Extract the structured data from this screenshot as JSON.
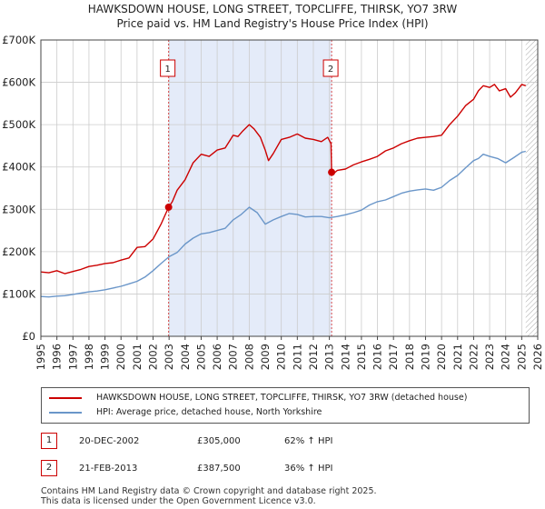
{
  "title_line1": "HAWKSDOWN HOUSE, LONG STREET, TOPCLIFFE, THIRSK, YO7 3RW",
  "title_line2": "Price paid vs. HM Land Registry's House Price Index (HPI)",
  "chart_data": {
    "type": "line",
    "title": "HAWKSDOWN HOUSE, LONG STREET, TOPCLIFFE, THIRSK, YO7 3RW",
    "subtitle": "Price paid vs. HM Land Registry's House Price Index (HPI)",
    "xlabel": "",
    "ylabel": "",
    "xlim": [
      1995,
      2026
    ],
    "ylim": [
      0,
      700000
    ],
    "grid": true,
    "x_ticks": [
      "1995",
      "1996",
      "1997",
      "1998",
      "1999",
      "2000",
      "2001",
      "2002",
      "2003",
      "2004",
      "2005",
      "2006",
      "2007",
      "2008",
      "2009",
      "2010",
      "2011",
      "2012",
      "2013",
      "2014",
      "2015",
      "2016",
      "2017",
      "2018",
      "2019",
      "2020",
      "2021",
      "2022",
      "2023",
      "2024",
      "2025",
      "2026"
    ],
    "y_ticks": [
      {
        "value": 0,
        "label": "£0"
      },
      {
        "value": 100000,
        "label": "£100K"
      },
      {
        "value": 200000,
        "label": "£200K"
      },
      {
        "value": 300000,
        "label": "£300K"
      },
      {
        "value": 400000,
        "label": "£400K"
      },
      {
        "value": 500000,
        "label": "£500K"
      },
      {
        "value": 600000,
        "label": "£600K"
      },
      {
        "value": 700000,
        "label": "£700K"
      }
    ],
    "shaded_period": [
      2002.97,
      2013.14
    ],
    "future_hatch_from": 2025.25,
    "series": [
      {
        "name": "HAWKSDOWN HOUSE, LONG STREET, TOPCLIFFE, THIRSK, YO7 3RW (detached house)",
        "color": "#cc0000",
        "x": [
          1995,
          1995.5,
          1996,
          1996.5,
          1997,
          1997.5,
          1998,
          1998.5,
          1999,
          1999.5,
          2000,
          2000.5,
          2001,
          2001.5,
          2002,
          2002.5,
          2002.97,
          2003.2,
          2003.5,
          2004,
          2004.5,
          2005,
          2005.5,
          2006,
          2006.5,
          2007,
          2007.3,
          2007.6,
          2008,
          2008.3,
          2008.7,
          2009,
          2009.2,
          2009.5,
          2010,
          2010.5,
          2011,
          2011.5,
          2012,
          2012.5,
          2012.9,
          2013.1,
          2013.14,
          2013.2,
          2013.5,
          2014,
          2014.5,
          2015,
          2015.5,
          2016,
          2016.5,
          2017,
          2017.5,
          2018,
          2018.5,
          2019,
          2019.5,
          2020,
          2020.5,
          2021,
          2021.5,
          2022,
          2022.3,
          2022.6,
          2023,
          2023.3,
          2023.6,
          2024,
          2024.3,
          2024.6,
          2025,
          2025.25
        ],
        "values": [
          152000,
          150000,
          155000,
          148000,
          153000,
          158000,
          165000,
          168000,
          172000,
          174000,
          180000,
          185000,
          210000,
          212000,
          230000,
          265000,
          305000,
          318000,
          345000,
          370000,
          410000,
          430000,
          425000,
          440000,
          445000,
          475000,
          472000,
          485000,
          500000,
          490000,
          470000,
          440000,
          415000,
          432000,
          465000,
          470000,
          478000,
          468000,
          465000,
          460000,
          470000,
          455000,
          387500,
          382000,
          392000,
          395000,
          405000,
          412000,
          418000,
          425000,
          438000,
          445000,
          455000,
          462000,
          468000,
          470000,
          472000,
          475000,
          500000,
          520000,
          545000,
          560000,
          580000,
          592000,
          588000,
          595000,
          580000,
          585000,
          565000,
          575000,
          595000,
          592000
        ]
      },
      {
        "name": "HPI: Average price, detached house, North Yorkshire",
        "color": "#6a96c9",
        "x": [
          1995,
          1995.5,
          1996,
          1996.5,
          1997,
          1997.5,
          1998,
          1998.5,
          1999,
          1999.5,
          2000,
          2000.5,
          2001,
          2001.5,
          2002,
          2002.5,
          2003,
          2003.5,
          2004,
          2004.5,
          2005,
          2005.5,
          2006,
          2006.5,
          2007,
          2007.5,
          2008,
          2008.5,
          2009,
          2009.5,
          2010,
          2010.5,
          2011,
          2011.5,
          2012,
          2012.5,
          2013,
          2013.5,
          2014,
          2014.5,
          2015,
          2015.5,
          2016,
          2016.5,
          2017,
          2017.5,
          2018,
          2018.5,
          2019,
          2019.5,
          2020,
          2020.5,
          2021,
          2021.5,
          2022,
          2022.3,
          2022.6,
          2023,
          2023.5,
          2024,
          2024.5,
          2025,
          2025.25
        ],
        "values": [
          94000,
          93000,
          95000,
          96000,
          99000,
          102000,
          105000,
          107000,
          110000,
          114000,
          118000,
          124000,
          130000,
          140000,
          155000,
          172000,
          188000,
          198000,
          218000,
          232000,
          242000,
          245000,
          250000,
          255000,
          275000,
          288000,
          305000,
          292000,
          265000,
          275000,
          283000,
          290000,
          288000,
          282000,
          283000,
          283000,
          280000,
          283000,
          287000,
          292000,
          298000,
          310000,
          318000,
          322000,
          330000,
          338000,
          343000,
          346000,
          348000,
          345000,
          352000,
          368000,
          380000,
          398000,
          415000,
          420000,
          430000,
          425000,
          420000,
          410000,
          422000,
          435000,
          437000
        ]
      }
    ],
    "sales": [
      {
        "marker": "1",
        "x": 2002.97,
        "price": 305000
      },
      {
        "marker": "2",
        "x": 2013.14,
        "price": 387500
      }
    ]
  },
  "legend": {
    "property_label": "HAWKSDOWN HOUSE, LONG STREET, TOPCLIFFE, THIRSK, YO7 3RW (detached house)",
    "hpi_label": "HPI: Average price, detached house, North Yorkshire"
  },
  "sales_table": [
    {
      "marker": "1",
      "date": "20-DEC-2002",
      "price": "£305,000",
      "hpi": "62% ↑ HPI"
    },
    {
      "marker": "2",
      "date": "21-FEB-2013",
      "price": "£387,500",
      "hpi": "36% ↑ HPI"
    }
  ],
  "footer": {
    "line1": "Contains HM Land Registry data © Crown copyright and database right 2025.",
    "line2": "This data is licensed under the Open Government Licence v3.0."
  }
}
